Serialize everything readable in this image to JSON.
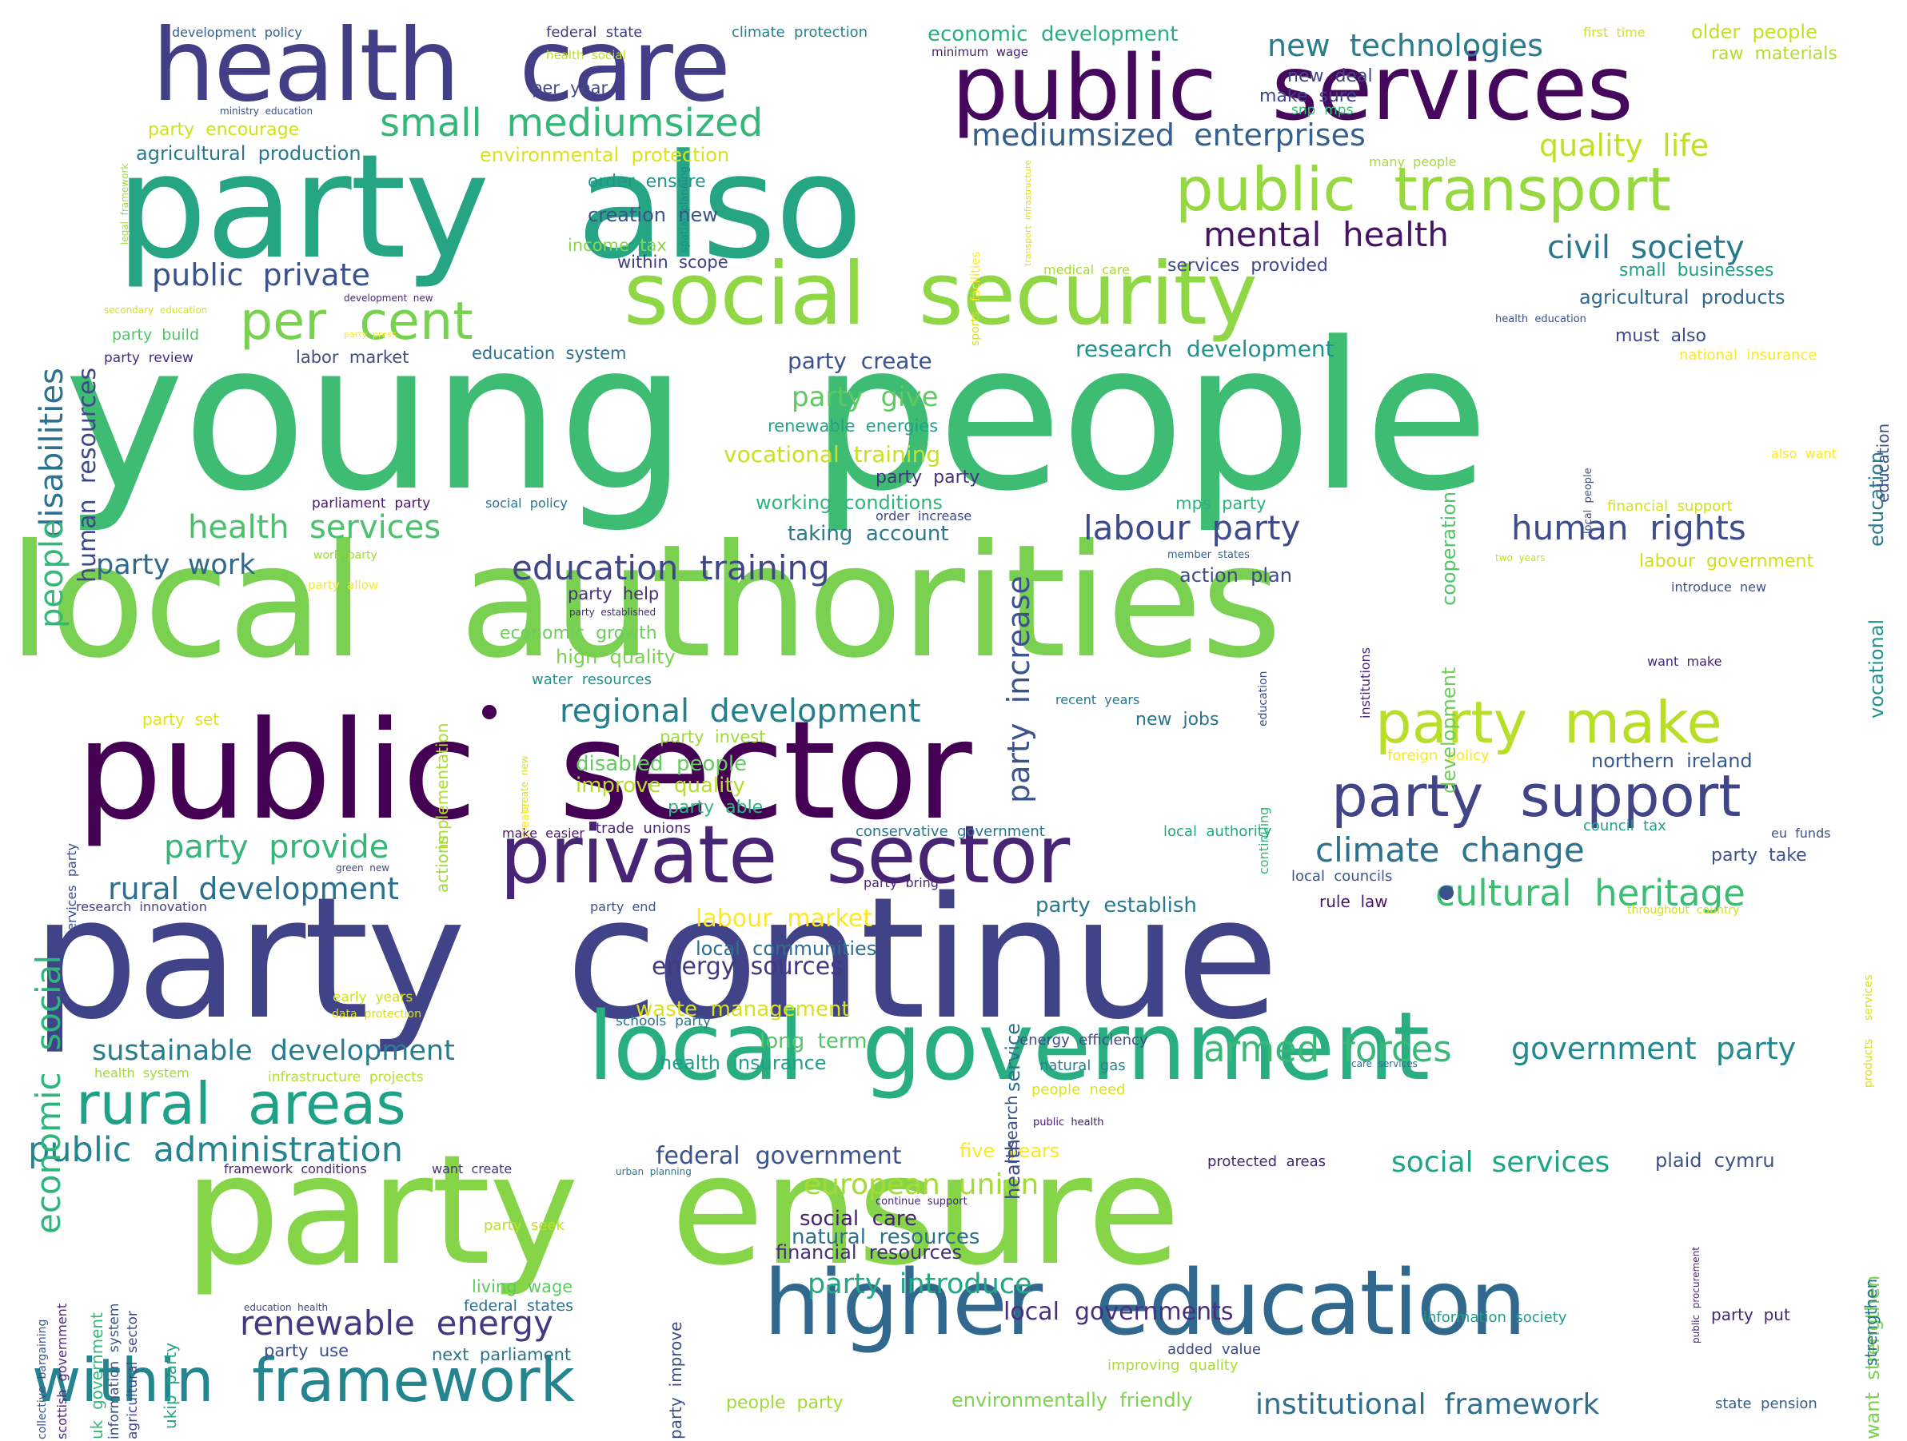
{
  "palette": {
    "dark_purple": "#440154",
    "indigo": "#3b528b",
    "deep_indigo": "#472d7b",
    "teal": "#21918c",
    "teal_blue": "#2c728e",
    "green_teal": "#28ae80",
    "green": "#5ec962",
    "lime": "#addc30",
    "yellow": "#fde725"
  },
  "words": [
    {
      "text": "young  people",
      "c": "#3fbc73"
    },
    {
      "text": "local  authorities",
      "c": "#7ad151"
    },
    {
      "text": "party  also",
      "c": "#25a584"
    },
    {
      "text": "party  continue",
      "c": "#404387"
    },
    {
      "text": "party  ensure",
      "c": "#86d549"
    },
    {
      "text": "public  sector",
      "c": "#440154"
    },
    {
      "text": "health  care",
      "c": "#433e85"
    },
    {
      "text": "public  services",
      "c": "#46085c"
    },
    {
      "text": "higher  education",
      "c": "#31688e"
    },
    {
      "text": "local  government",
      "c": "#28ae80"
    },
    {
      "text": "private  sector",
      "c": "#482475"
    },
    {
      "text": "social  security",
      "c": "#8fd744"
    },
    {
      "text": "public  transport",
      "c": "#95d840"
    },
    {
      "text": "within  framework",
      "c": "#25858e"
    },
    {
      "text": "rural  areas",
      "c": "#1fa188"
    },
    {
      "text": "party  support",
      "c": "#414487"
    },
    {
      "text": "party  make",
      "c": "#b8de29"
    },
    {
      "text": "per  cent",
      "c": "#7ad151"
    },
    {
      "text": "small  mediumsized",
      "c": "#35b779"
    },
    {
      "text": "mediumsized  enterprises",
      "c": "#355f8d"
    },
    {
      "text": "new  technologies",
      "c": "#297b8e"
    },
    {
      "text": "quality  life",
      "c": "#c2df23"
    },
    {
      "text": "mental  health",
      "c": "#471365"
    },
    {
      "text": "civil  society",
      "c": "#2a788e"
    },
    {
      "text": "public  private",
      "c": "#3b528b"
    },
    {
      "text": "labour  party",
      "c": "#3e4a89"
    },
    {
      "text": "human  rights",
      "c": "#3e4c8a"
    },
    {
      "text": "health  services",
      "c": "#4ac16d"
    },
    {
      "text": "education  training",
      "c": "#404688"
    },
    {
      "text": "party  work",
      "c": "#31688e"
    },
    {
      "text": "regional  development",
      "c": "#277f8e"
    },
    {
      "text": "party  provide",
      "c": "#34b679"
    },
    {
      "text": "climate  change",
      "c": "#2c728e"
    },
    {
      "text": "rural  development",
      "c": "#2d708e"
    },
    {
      "text": "cultural  heritage",
      "c": "#3dbc74"
    },
    {
      "text": "armed  forces",
      "c": "#38b977"
    },
    {
      "text": "government  party",
      "c": "#23898e"
    },
    {
      "text": "sustainable  development",
      "c": "#287c8e"
    },
    {
      "text": "public  administration",
      "c": "#26828e"
    },
    {
      "text": "renewable  energy",
      "c": "#453781"
    },
    {
      "text": "social  services",
      "c": "#20a486"
    },
    {
      "text": "european  union",
      "c": "#a5db36"
    },
    {
      "text": "party  introduce",
      "c": "#22a785"
    },
    {
      "text": "local  governments",
      "c": "#472f7d"
    },
    {
      "text": "institutional  framework",
      "c": "#2e6f8e"
    },
    {
      "text": "party  give",
      "c": "#5ec962"
    },
    {
      "text": "vocational  training",
      "c": "#c8e020"
    },
    {
      "text": "party  create",
      "c": "#3b528b"
    },
    {
      "text": "research  development",
      "c": "#21918c"
    },
    {
      "text": "party  party",
      "c": "#46337f"
    },
    {
      "text": "working  conditions",
      "c": "#2fb47c"
    },
    {
      "text": "taking  account",
      "c": "#2a788e"
    },
    {
      "text": "disabled  people",
      "c": "#63cb5f"
    },
    {
      "text": "improve  quality",
      "c": "#b5de2b"
    },
    {
      "text": "labour  market",
      "c": "#fde725"
    },
    {
      "text": "local  communities",
      "c": "#2e6e8e"
    },
    {
      "text": "energy  sources",
      "c": "#453882"
    },
    {
      "text": "waste  management",
      "c": "#d8e219"
    },
    {
      "text": "long  term",
      "c": "#52c569"
    },
    {
      "text": "health  insurance",
      "c": "#1f9e89"
    },
    {
      "text": "federal  government",
      "c": "#3b528b"
    },
    {
      "text": "social  care",
      "c": "#482173"
    },
    {
      "text": "natural  resources",
      "c": "#2d708e"
    },
    {
      "text": "financial  resources",
      "c": "#472c7a"
    },
    {
      "text": "economic  development",
      "c": "#29af7f"
    },
    {
      "text": "agricultural  products",
      "c": "#31688e"
    },
    {
      "text": "agricultural  production",
      "c": "#2a788e"
    },
    {
      "text": "environmental  protection",
      "c": "#dae319"
    },
    {
      "text": "party  encourage",
      "c": "#d0e11c"
    },
    {
      "text": "creation  new",
      "c": "#3b528b"
    },
    {
      "text": "order  ensure",
      "c": "#1f968b"
    },
    {
      "text": "income  tax",
      "c": "#8bd646"
    },
    {
      "text": "within  scope",
      "c": "#433d84"
    },
    {
      "text": "per  year",
      "c": "#3e4a89"
    },
    {
      "text": "education  system",
      "c": "#2d718e"
    },
    {
      "text": "labor  market",
      "c": "#3d4e8a"
    },
    {
      "text": "party  build",
      "c": "#52c569"
    },
    {
      "text": "renewable  energies",
      "c": "#1fa287"
    },
    {
      "text": "party  help",
      "c": "#472d7b"
    },
    {
      "text": "economic  growth",
      "c": "#6ccd5a"
    },
    {
      "text": "high  quality",
      "c": "#7ad151"
    },
    {
      "text": "water  resources",
      "c": "#21918c"
    },
    {
      "text": "party  invest",
      "c": "#9dd93b"
    },
    {
      "text": "party  able",
      "c": "#2fb47c"
    },
    {
      "text": "trade  unions",
      "c": "#482878"
    },
    {
      "text": "make  sure",
      "c": "#404588"
    },
    {
      "text": "new  deal",
      "c": "#3f4788"
    },
    {
      "text": "services  provided",
      "c": "#3f4889"
    },
    {
      "text": "small  businesses",
      "c": "#1fa088"
    },
    {
      "text": "must  also",
      "c": "#3f4889"
    },
    {
      "text": "national  insurance",
      "c": "#fde725"
    },
    {
      "text": "action  plan",
      "c": "#3e4a89"
    },
    {
      "text": "mps  party",
      "c": "#2db27d"
    },
    {
      "text": "financial  support",
      "c": "#d2e21b"
    },
    {
      "text": "labour  government",
      "c": "#d0e11c"
    },
    {
      "text": "new  jobs",
      "c": "#2b748e"
    },
    {
      "text": "foreign  policy",
      "c": "#fde725"
    },
    {
      "text": "northern  ireland",
      "c": "#375a8c"
    },
    {
      "text": "council  tax",
      "c": "#1fa187"
    },
    {
      "text": "party  take",
      "c": "#3b528b"
    },
    {
      "text": "rule  law",
      "c": "#481668"
    },
    {
      "text": "local  councils",
      "c": "#3a548c"
    },
    {
      "text": "party  establish",
      "c": "#2a788e"
    },
    {
      "text": "conservative  government",
      "c": "#2a778e"
    },
    {
      "text": "local  authority",
      "c": "#22a884"
    },
    {
      "text": "energy  efficiency",
      "c": "#3e4a89"
    },
    {
      "text": "natural  gas",
      "c": "#26828e"
    },
    {
      "text": "people  need",
      "c": "#dde318"
    },
    {
      "text": "five  years",
      "c": "#fde725"
    },
    {
      "text": "protected  areas",
      "c": "#482475"
    },
    {
      "text": "plaid  cymru",
      "c": "#3b528b"
    },
    {
      "text": "information  society",
      "c": "#1f9f88"
    },
    {
      "text": "party  put",
      "c": "#482475"
    },
    {
      "text": "state  pension",
      "c": "#355f8d"
    },
    {
      "text": "added  value",
      "c": "#3f4788"
    },
    {
      "text": "improving  quality",
      "c": "#a8db34"
    },
    {
      "text": "environmentally  friendly",
      "c": "#7fd34e"
    },
    {
      "text": "people  party",
      "c": "#a2da37"
    },
    {
      "text": "next  parliament",
      "c": "#2b748e"
    },
    {
      "text": "party  use",
      "c": "#3d4d8a"
    },
    {
      "text": "federal  states",
      "c": "#2d708e"
    },
    {
      "text": "living  wage",
      "c": "#5ec962"
    },
    {
      "text": "party  seek",
      "c": "#c0df25"
    },
    {
      "text": "federal  state",
      "c": "#433e85"
    },
    {
      "text": "climate  protection",
      "c": "#25838e"
    },
    {
      "text": "development  policy",
      "c": "#34608d"
    },
    {
      "text": "first  time",
      "c": "#d2e21b"
    },
    {
      "text": "older  people",
      "c": "#c5e021"
    },
    {
      "text": "raw  materials",
      "c": "#b2dd2d"
    },
    {
      "text": "minimum  wage",
      "c": "#481d6f"
    },
    {
      "text": "many  people",
      "c": "#a5db36"
    },
    {
      "text": "health  social",
      "c": "#c2df23"
    },
    {
      "text": "ministry  education",
      "c": "#3b528b"
    },
    {
      "text": "snp  mps",
      "c": "#3aba76"
    },
    {
      "text": "medical  care",
      "c": "#a5db36"
    },
    {
      "text": "recent  years",
      "c": "#2a788e"
    },
    {
      "text": "want  make",
      "c": "#482475"
    },
    {
      "text": "party  end",
      "c": "#3b528b"
    },
    {
      "text": "party  set",
      "c": "#e2e418"
    },
    {
      "text": "parliament  party",
      "c": "#481a6c"
    },
    {
      "text": "social  policy",
      "c": "#2c728e"
    },
    {
      "text": "order  increase",
      "c": "#3f4788"
    },
    {
      "text": "party  review",
      "c": "#472d7b"
    },
    {
      "text": "research  innovation",
      "c": "#433e85"
    },
    {
      "text": "party  bring",
      "c": "#482576"
    },
    {
      "text": "make  easier",
      "c": "#481668"
    },
    {
      "text": "early  years",
      "c": "#d2e21b"
    },
    {
      "text": "data  protection",
      "c": "#d8e219"
    },
    {
      "text": "schools  party",
      "c": "#2c728e"
    },
    {
      "text": "health  system",
      "c": "#a0da39"
    },
    {
      "text": "infrastructure  projects",
      "c": "#b5de2b"
    },
    {
      "text": "framework  conditions",
      "c": "#472a7a"
    },
    {
      "text": "want  create",
      "c": "#46337f"
    },
    {
      "text": "education  health",
      "c": "#3e4989"
    },
    {
      "text": "member  states",
      "c": "#355f8d"
    },
    {
      "text": "introduce  new",
      "c": "#3b528b"
    },
    {
      "text": "two  years",
      "c": "#c2df23"
    },
    {
      "text": "also  want",
      "c": "#fde725"
    },
    {
      "text": "eu  funds",
      "c": "#3b528b"
    },
    {
      "text": "throughout  country",
      "c": "#d2e21b"
    },
    {
      "text": "continue  support",
      "c": "#482878"
    },
    {
      "text": "urban  planning",
      "c": "#2a788e"
    },
    {
      "text": "public  health",
      "c": "#481a6c"
    },
    {
      "text": "care  services",
      "c": "#2c728e"
    },
    {
      "text": "green  new",
      "c": "#3e4a89"
    },
    {
      "text": "party  allow",
      "c": "#fde725"
    },
    {
      "text": "work  party",
      "c": "#a5db36"
    },
    {
      "text": "development  new",
      "c": "#482878"
    },
    {
      "text": "secondary  education",
      "c": "#d8e219"
    },
    {
      "text": "party  press",
      "c": "#fde725"
    },
    {
      "text": "party  established",
      "c": "#482878"
    },
    {
      "text": "health  education",
      "c": "#3b528b"
    },
    {
      "text": "spatial  planning",
      "c": "#23898e"
    },
    {
      "text": "transport  infrastructure",
      "c": "#d8e219"
    },
    {
      "text": "disabilities",
      "c": "#2c728e"
    },
    {
      "text": "human  resources",
      "c": "#3f4788"
    },
    {
      "text": "people",
      "c": "#35b779"
    },
    {
      "text": "economic  social",
      "c": "#2fb47c"
    },
    {
      "text": "party  increase",
      "c": "#3b528b"
    },
    {
      "text": "service",
      "c": "#2c728e"
    },
    {
      "text": "health",
      "c": "#3e4a89"
    },
    {
      "text": "education",
      "c": "#2a788e"
    },
    {
      "text": "vocational",
      "c": "#21918c"
    },
    {
      "text": "want  strengthen",
      "c": "#7ad151"
    },
    {
      "text": "development",
      "c": "#6ccd5a"
    },
    {
      "text": "cooperation",
      "c": "#52c569"
    },
    {
      "text": "implementation",
      "c": "#addc30"
    },
    {
      "text": "actions",
      "c": "#a0da39"
    },
    {
      "text": "institutions",
      "c": "#482878"
    },
    {
      "text": "continuing",
      "c": "#34b679"
    },
    {
      "text": "education",
      "c": "#3e4989"
    },
    {
      "text": "facilities",
      "c": "#fde725"
    },
    {
      "text": "sports",
      "c": "#d8e219"
    },
    {
      "text": "legal  framework",
      "c": "#a0da39"
    },
    {
      "text": "party  improve",
      "c": "#3e4989"
    },
    {
      "text": "ukip  party",
      "c": "#25a584"
    },
    {
      "text": "uk  government",
      "c": "#35b779"
    },
    {
      "text": "information  system",
      "c": "#3b528b"
    },
    {
      "text": "agricultural  sector",
      "c": "#3e4989"
    },
    {
      "text": "collective  bargaining",
      "c": "#3b528b"
    },
    {
      "text": "scottish  government",
      "c": "#482878"
    },
    {
      "text": "services  party",
      "c": "#3e4989"
    },
    {
      "text": "public  procurement",
      "c": "#482878"
    },
    {
      "text": "products",
      "c": "#d8e219"
    },
    {
      "text": "services",
      "c": "#d8e219"
    },
    {
      "text": "create  new",
      "c": "#d8e219"
    },
    {
      "text": "create",
      "c": "#fde725"
    },
    {
      "text": "local  people",
      "c": "#3b528b"
    },
    {
      "text": "education",
      "c": "#3b528b"
    },
    {
      "text": "strengthen",
      "c": "#2c728e"
    },
    {
      "text": "research",
      "c": "#3b528b"
    }
  ]
}
